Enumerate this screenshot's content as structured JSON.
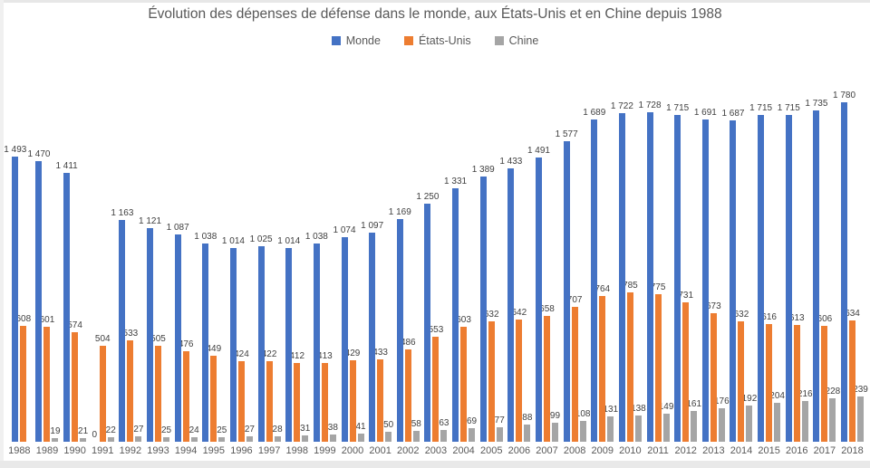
{
  "frame": {
    "background": "#ffffff",
    "edge_color": "#e8e8e8"
  },
  "chart_data": {
    "type": "bar",
    "title": "Évolution des dépenses de défense dans le monde, aux États-Unis et en Chine depuis 1988",
    "categories": [
      1988,
      1989,
      1990,
      1991,
      1992,
      1993,
      1994,
      1995,
      1996,
      1997,
      1998,
      1999,
      2000,
      2001,
      2002,
      2003,
      2004,
      2005,
      2006,
      2007,
      2008,
      2009,
      2010,
      2011,
      2012,
      2013,
      2014,
      2015,
      2016,
      2017,
      2018
    ],
    "series": [
      {
        "key": "monde",
        "name": "Monde",
        "color": "#4472C4",
        "values": [
          1493,
          1470,
          1411,
          0,
          1163,
          1121,
          1087,
          1038,
          1014,
          1025,
          1014,
          1038,
          1074,
          1097,
          1169,
          1250,
          1331,
          1389,
          1433,
          1491,
          1577,
          1689,
          1722,
          1728,
          1715,
          1691,
          1687,
          1715,
          1715,
          1735,
          1780
        ]
      },
      {
        "key": "etats-unis",
        "name": "États-Unis",
        "color": "#ED7D31",
        "values": [
          608,
          601,
          574,
          504,
          533,
          505,
          476,
          449,
          424,
          422,
          412,
          413,
          429,
          433,
          486,
          553,
          603,
          632,
          642,
          658,
          707,
          764,
          785,
          775,
          731,
          673,
          632,
          616,
          613,
          606,
          634
        ]
      },
      {
        "key": "chine",
        "name": "Chine",
        "color": "#A5A5A5",
        "values": [
          null,
          19,
          21,
          22,
          27,
          25,
          24,
          25,
          27,
          28,
          31,
          38,
          41,
          50,
          58,
          63,
          69,
          77,
          88,
          99,
          108,
          131,
          138,
          149,
          161,
          176,
          192,
          204,
          216,
          228,
          239
        ]
      }
    ],
    "ylim": [
      0,
      1780
    ],
    "grid": false,
    "legend_position": "top",
    "data_labels": true,
    "number_format": "space-thousands",
    "text_color": "#404040",
    "axis_text_color": "#595959"
  }
}
